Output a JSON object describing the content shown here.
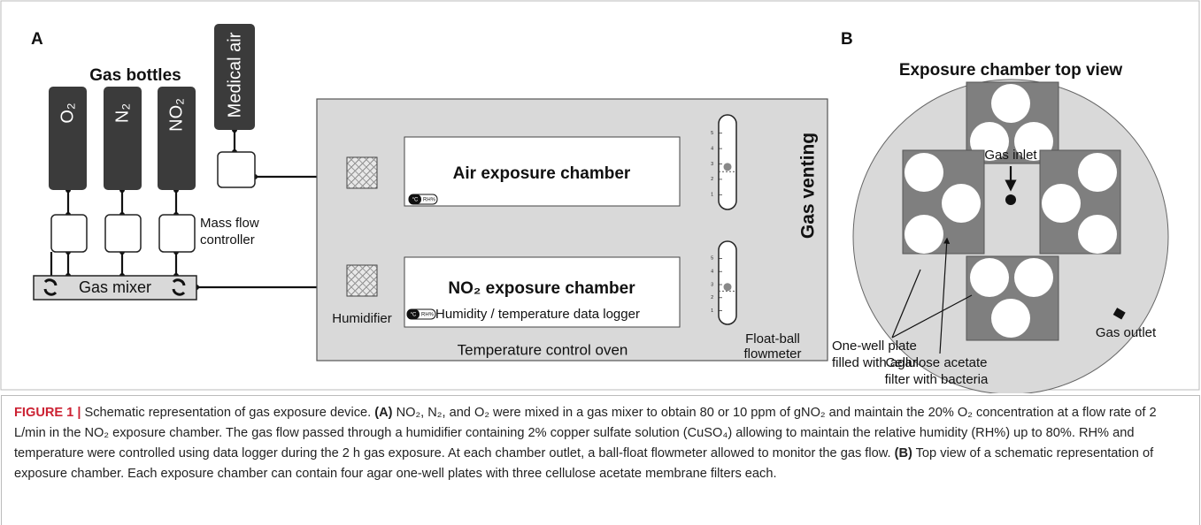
{
  "panel_a": {
    "label": "A",
    "title": "Gas bottles",
    "bottles": [
      "O₂",
      "N₂",
      "NO₂"
    ],
    "medical_air": "Medical air",
    "mass_flow_controller": [
      "Mass flow",
      "controller"
    ],
    "gas_mixer": "Gas mixer",
    "humidifier": "Humidifier",
    "air_chamber": "Air exposure chamber",
    "no2_chamber": "NO₂ exposure chamber",
    "data_logger": "Humidity / temperature data logger",
    "logger_icon": [
      "°C",
      "RH%"
    ],
    "oven": "Temperature control oven",
    "flowmeter": [
      "Float-ball",
      "flowmeter"
    ],
    "flowmeter_scale": [
      "5",
      "4",
      "3",
      "2",
      "1"
    ],
    "venting": "Gas venting"
  },
  "panel_b": {
    "label": "B",
    "title": "Exposure chamber top view",
    "gas_inlet": "Gas inlet",
    "gas_outlet": "Gas outlet",
    "plate": [
      "One-well plate",
      "filled with agar"
    ],
    "filter": [
      "Cellulose acetate",
      "filter with bacteria"
    ]
  },
  "caption": {
    "label": "FIGURE 1 |",
    "intro": "Schematic representation of gas exposure device.",
    "part_a": "(A)",
    "text_a": "NO₂, N₂, and O₂ were mixed in a gas mixer to obtain 80 or 10 ppm of gNO₂ and maintain the 20% O₂ concentration at a flow rate of 2 L/min in the NO₂ exposure chamber. The gas flow passed through a humidifier containing 2% copper sulfate solution (CuSO₄) allowing to maintain the relative humidity (RH%) up to 80%. RH% and temperature were controlled using data logger during the 2 h gas exposure. At each chamber outlet, a ball-float flowmeter allowed to monitor the gas flow.",
    "part_b": "(B)",
    "text_b": "Top view of a schematic representation of exposure chamber. Each exposure chamber can contain four agar one-well plates with three cellulose acetate membrane filters each."
  }
}
